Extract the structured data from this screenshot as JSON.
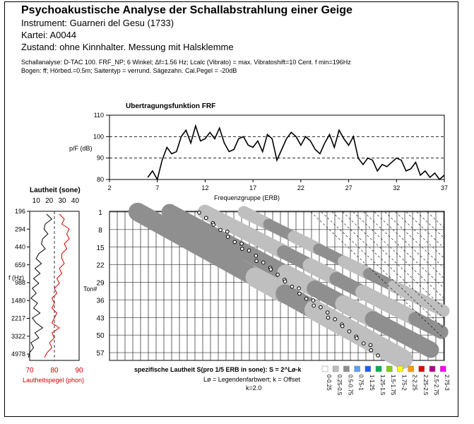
{
  "header": {
    "title": "Psychoakustische Analyse der Schallabstrahlung einer Geige",
    "instrument": "Instrument: Guarneri del Gesu (1733)",
    "kartei": "Kartei: A0044",
    "zustand": "Zustand: ohne Kinnhalter. Messung mit Halsklemme",
    "analyse_line1": "Schallanalyse: D-TAC 100. FRF_NP; 6 Winkel; Δf=1.56 Hz; Lcalc (Vibrato) = max. Vibratoshift=10 Cent. f min=196Hz",
    "analyse_line2": "Bogen: ff; Hörbed.=0.5m; Saitentyp = verrund. Sägezahn. Cal.Pegel = -20dB"
  },
  "chart_data": [
    {
      "type": "line",
      "title": "Ubertragungsfunktion FRF",
      "xlabel": "Frequenzgruppe (ERB)",
      "ylabel": "p/F (dB)",
      "xlim": [
        2,
        37
      ],
      "ylim": [
        80,
        110
      ],
      "x_ticks": [
        2,
        7,
        12,
        17,
        22,
        27,
        32,
        37
      ],
      "y_ticks": [
        80,
        90,
        100,
        110
      ],
      "grid": "dashed horizontal",
      "series": [
        {
          "x": [
            6.0,
            6.5,
            7.0,
            7.5,
            8.0,
            8.5,
            9.0,
            9.5,
            10.0,
            10.5,
            11.0,
            11.5,
            12.0,
            12.5,
            13.0,
            13.5,
            14.0,
            14.5,
            15.0,
            15.5,
            16.0,
            16.5,
            17.0,
            17.5,
            18.0,
            18.5,
            19.0,
            19.5,
            20.0,
            20.5,
            21.0,
            21.5,
            22.0,
            22.5,
            23.0,
            23.5,
            24.0,
            24.5,
            25.0,
            25.5,
            26.0,
            26.5,
            27.0,
            27.5,
            28.0,
            28.5,
            29.0,
            29.5,
            30.0,
            30.5,
            31.0,
            31.5,
            32.0,
            32.5,
            33.0,
            33.5,
            34.0,
            34.5,
            35.0,
            35.5,
            36.0,
            36.5,
            37.0
          ],
          "values": [
            81,
            84,
            80,
            89,
            95,
            92,
            93,
            100,
            103,
            97,
            105,
            98,
            99,
            102,
            99,
            104,
            97,
            93,
            94,
            99,
            100,
            96,
            95,
            98,
            93,
            101,
            99,
            89,
            94,
            99,
            102,
            100,
            96,
            100,
            98,
            94,
            92,
            97,
            101,
            95,
            103,
            99,
            96,
            100,
            90,
            87,
            90,
            89,
            84,
            87,
            86,
            88,
            90,
            89,
            84,
            85,
            88,
            82,
            84,
            81,
            83,
            80,
            82
          ]
        }
      ]
    },
    {
      "type": "line",
      "title": "Lautheit (sone)",
      "xlabel": "Lautheitspegel (phon)",
      "ylabel": "f (Hz)",
      "top_ticks": [
        10,
        20,
        30,
        40
      ],
      "bottom_ticks": [
        70,
        80,
        90
      ],
      "f_ticks": [
        196,
        294,
        440,
        659,
        988,
        1480,
        2217,
        3322,
        4978
      ],
      "series": [
        {
          "name": "Lautheit (sone)",
          "color": "#000000",
          "values": [
            18,
            22,
            17,
            16,
            19,
            15,
            14,
            17,
            12,
            10,
            14,
            9,
            13,
            8,
            12,
            7,
            10,
            6,
            11,
            8,
            13,
            7,
            10,
            15,
            9,
            12,
            6,
            8,
            5,
            4
          ]
        },
        {
          "name": "Lautheitspegel (phon)",
          "color": "#e00000",
          "values": [
            82,
            84,
            83,
            86,
            85,
            86,
            84,
            85,
            83,
            83,
            84,
            82,
            83,
            81,
            82,
            80,
            81,
            79,
            80,
            79,
            81,
            80,
            79,
            82,
            79,
            80,
            78,
            79,
            77,
            76
          ]
        }
      ]
    },
    {
      "type": "heatmap",
      "title": "spezifische Lautheit S(pro 1/5 ERB in sone): S = 2^Lø-k",
      "legend_note_1": "Lø = Legendenfarbwert; k = Offset",
      "legend_note_2": "k=2.0",
      "ton_ticks": [
        1,
        8,
        15,
        22,
        29,
        36,
        43,
        50,
        57
      ],
      "ton_label": "Ton#",
      "legend": [
        {
          "label": "0-0.25",
          "color": "#ffffff"
        },
        {
          "label": "0.25-0.5",
          "color": "#bfbfbf"
        },
        {
          "label": "0.5-0.75",
          "color": "#8f8f8f"
        },
        {
          "label": "0.75-1",
          "color": "#5aa0ff"
        },
        {
          "label": "1-1.25",
          "color": "#1a5cff"
        },
        {
          "label": "1.25-1.5",
          "color": "#00b050"
        },
        {
          "label": "1.5-1.75",
          "color": "#7fd200"
        },
        {
          "label": "1.75-2",
          "color": "#ffff00"
        },
        {
          "label": "2-2.25",
          "color": "#ff9a00"
        },
        {
          "label": "2.25-2.5",
          "color": "#e60000"
        },
        {
          "label": "2.5-2.75",
          "color": "#b0008a"
        },
        {
          "label": "2.75-3",
          "color": "#ff00ff"
        }
      ]
    }
  ]
}
